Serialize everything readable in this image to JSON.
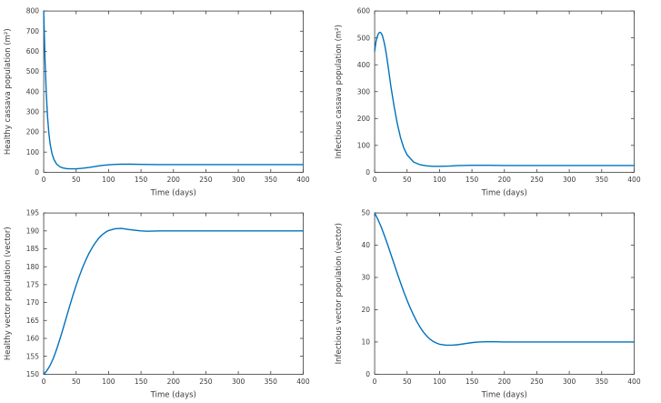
{
  "figure_title": "",
  "theme": {
    "line_color": "#0072BD",
    "axis_color": "#3b3b3b",
    "background": "#ffffff",
    "tick_font_size": 7.5,
    "label_font_size": 8.5
  },
  "chart_data": [
    {
      "id": "healthy-cassava",
      "type": "line",
      "title": "",
      "xlabel": "Time (days)",
      "ylabel": "Healthy cassava population (m²)",
      "xlim": [
        0,
        400
      ],
      "ylim": [
        0,
        800
      ],
      "xticks": [
        0,
        50,
        100,
        150,
        200,
        250,
        300,
        350,
        400
      ],
      "yticks": [
        0,
        100,
        200,
        300,
        400,
        500,
        600,
        700,
        800
      ],
      "grid": false,
      "legend": "none",
      "x": [
        0,
        2,
        4,
        6,
        8,
        10,
        13,
        16,
        20,
        25,
        30,
        35,
        40,
        50,
        60,
        70,
        80,
        90,
        100,
        110,
        120,
        135,
        150,
        175,
        200,
        250,
        300,
        350,
        400
      ],
      "y": [
        800,
        560,
        390,
        272,
        192,
        138,
        90,
        62,
        40,
        27,
        21,
        18,
        17,
        17,
        20,
        24,
        29,
        34,
        37,
        39,
        40,
        40,
        39,
        38,
        38,
        38,
        38,
        38,
        38
      ]
    },
    {
      "id": "infectious-cassava",
      "type": "line",
      "title": "",
      "xlabel": "Time (days)",
      "ylabel": "Infectious cassava population (m²)",
      "xlim": [
        0,
        400
      ],
      "ylim": [
        0,
        600
      ],
      "xticks": [
        0,
        50,
        100,
        150,
        200,
        250,
        300,
        350,
        400
      ],
      "yticks": [
        0,
        100,
        200,
        300,
        400,
        500,
        600
      ],
      "grid": false,
      "legend": "none",
      "x": [
        0,
        2,
        4,
        6,
        8,
        10,
        12,
        15,
        18,
        21,
        25,
        30,
        35,
        40,
        45,
        50,
        60,
        70,
        80,
        90,
        100,
        115,
        130,
        150,
        175,
        200,
        250,
        300,
        350,
        400
      ],
      "y": [
        450,
        485,
        505,
        517,
        521,
        518,
        508,
        480,
        440,
        390,
        320,
        245,
        180,
        128,
        90,
        65,
        38,
        28,
        24,
        22,
        22,
        23,
        25,
        26,
        26,
        25,
        25,
        25,
        25,
        25
      ]
    },
    {
      "id": "healthy-vector",
      "type": "line",
      "title": "",
      "xlabel": "Time (days)",
      "ylabel": "Healthy vector population (vector)",
      "xlim": [
        0,
        400
      ],
      "ylim": [
        150,
        195
      ],
      "xticks": [
        0,
        50,
        100,
        150,
        200,
        250,
        300,
        350,
        400
      ],
      "yticks": [
        150,
        155,
        160,
        165,
        170,
        175,
        180,
        185,
        190,
        195
      ],
      "grid": false,
      "legend": "none",
      "x": [
        0,
        5,
        10,
        15,
        20,
        25,
        30,
        35,
        40,
        45,
        50,
        55,
        60,
        65,
        70,
        75,
        80,
        85,
        90,
        95,
        100,
        110,
        120,
        130,
        140,
        150,
        160,
        180,
        200,
        250,
        300,
        350,
        400
      ],
      "y": [
        150,
        151,
        152.5,
        154.5,
        157,
        159.8,
        162.8,
        165.9,
        169,
        172,
        174.8,
        177.4,
        179.8,
        181.9,
        183.8,
        185.4,
        186.8,
        188,
        188.9,
        189.6,
        190.1,
        190.6,
        190.7,
        190.4,
        190.2,
        190,
        189.9,
        190,
        190,
        190,
        190,
        190,
        190
      ]
    },
    {
      "id": "infectious-vector",
      "type": "line",
      "title": "",
      "xlabel": "Time (days)",
      "ylabel": "Infectious vector population (vector)",
      "xlim": [
        0,
        400
      ],
      "ylim": [
        0,
        50
      ],
      "xticks": [
        0,
        50,
        100,
        150,
        200,
        250,
        300,
        350,
        400
      ],
      "yticks": [
        0,
        10,
        20,
        30,
        40,
        50
      ],
      "grid": false,
      "legend": "none",
      "x": [
        0,
        5,
        10,
        15,
        20,
        25,
        30,
        35,
        40,
        45,
        50,
        55,
        60,
        65,
        70,
        75,
        80,
        85,
        90,
        95,
        100,
        110,
        120,
        130,
        140,
        150,
        160,
        180,
        200,
        250,
        300,
        350,
        400
      ],
      "y": [
        50,
        48,
        45.7,
        43,
        40.2,
        37.2,
        34.2,
        31.2,
        28.3,
        25.5,
        22.9,
        20.5,
        18.3,
        16.3,
        14.6,
        13.1,
        11.9,
        10.9,
        10.2,
        9.7,
        9.3,
        9.0,
        9.0,
        9.2,
        9.5,
        9.8,
        10,
        10.1,
        10,
        10,
        10,
        10,
        10
      ]
    }
  ]
}
